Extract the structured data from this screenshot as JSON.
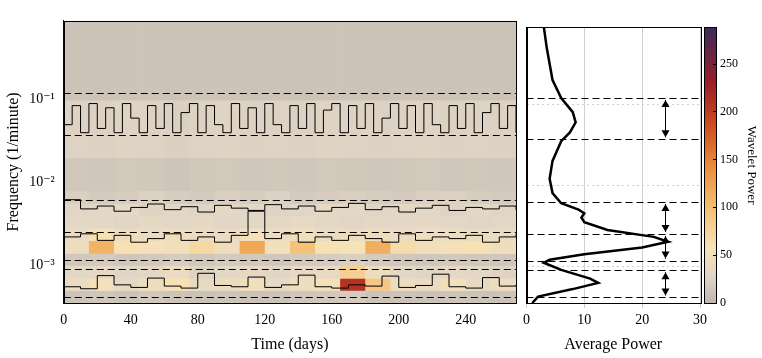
{
  "chart_data": [
    {
      "type": "heatmap",
      "xlabel": "Time (days)",
      "ylabel": "Frequency (1/minute)",
      "log": "y",
      "grid": false,
      "xlim": [
        0,
        270
      ],
      "xticks": [
        0,
        40,
        80,
        120,
        160,
        200,
        240
      ],
      "ylim": [
        0.00035,
        0.9
      ],
      "yticks": [
        {
          "value": 0.001,
          "label": "10⁻³"
        },
        {
          "value": 0.01,
          "label": "10⁻²"
        },
        {
          "value": 0.1,
          "label": "10⁻¹"
        }
      ],
      "x_edges": [
        0,
        15,
        30,
        45,
        60,
        75,
        90,
        105,
        120,
        135,
        150,
        165,
        180,
        195,
        210,
        225,
        240,
        255,
        270
      ],
      "y_edges": [
        0.00035,
        0.0005,
        0.0007,
        0.001,
        0.0014,
        0.002,
        0.0028,
        0.004,
        0.0056,
        0.008,
        0.02,
        0.1,
        0.9
      ],
      "cells": [
        [
          12,
          14,
          10,
          15,
          12,
          11,
          13,
          10,
          12,
          14,
          15,
          18,
          12,
          10,
          11,
          13,
          12,
          10
        ],
        [
          40,
          55,
          35,
          45,
          60,
          38,
          42,
          50,
          36,
          48,
          55,
          210,
          90,
          45,
          40,
          52,
          38,
          44
        ],
        [
          30,
          35,
          28,
          32,
          40,
          26,
          30,
          34,
          28,
          36,
          38,
          80,
          45,
          30,
          28,
          32,
          30,
          26
        ],
        [
          15,
          18,
          14,
          16,
          20,
          15,
          18,
          16,
          14,
          17,
          19,
          22,
          18,
          15,
          14,
          16,
          15,
          14
        ],
        [
          45,
          110,
          60,
          55,
          50,
          70,
          48,
          120,
          52,
          95,
          60,
          58,
          115,
          65,
          50,
          55,
          60,
          48
        ],
        [
          40,
          60,
          45,
          42,
          50,
          45,
          40,
          55,
          44,
          50,
          42,
          45,
          48,
          40,
          46,
          44,
          42,
          40
        ],
        [
          30,
          32,
          28,
          35,
          30,
          34,
          28,
          30,
          32,
          36,
          30,
          28,
          32,
          30,
          34,
          30,
          28,
          30
        ],
        [
          28,
          30,
          34,
          26,
          30,
          28,
          32,
          30,
          26,
          28,
          34,
          30,
          28,
          32,
          30,
          26,
          30,
          28
        ],
        [
          22,
          18,
          20,
          24,
          20,
          18,
          22,
          20,
          24,
          18,
          20,
          22,
          20,
          18,
          22,
          24,
          20,
          18
        ],
        [
          15,
          14,
          16,
          15,
          13,
          15,
          16,
          14,
          15,
          14,
          16,
          15,
          14,
          15,
          16,
          14,
          15,
          14
        ],
        [
          25,
          24,
          26,
          25,
          23,
          25,
          26,
          24,
          25,
          24,
          26,
          25,
          24,
          25,
          26,
          24,
          25,
          24
        ],
        [
          12,
          11,
          12,
          12,
          11,
          12,
          12,
          11,
          12,
          11,
          12,
          12,
          11,
          12,
          12,
          11,
          12,
          11
        ]
      ],
      "colorbar": {
        "label": "Wavelet Power",
        "range": [
          0,
          288
        ],
        "ticks": [
          0,
          50,
          100,
          150,
          200,
          250
        ]
      },
      "band_edges": [
        0.12,
        0.037,
        0.0062,
        0.0025,
        0.00117,
        0.00089,
        0.00041
      ],
      "series": [
        {
          "color": "#000000",
          "x": [
            0,
            5,
            10,
            15,
            20,
            25,
            30,
            35,
            40,
            45,
            50,
            55,
            60,
            65,
            70,
            75,
            80,
            85,
            90,
            95,
            100,
            105,
            110,
            115,
            120,
            125,
            130,
            135,
            140,
            145,
            150,
            155,
            160,
            165,
            170,
            175,
            180,
            185,
            190,
            195,
            200,
            205,
            210,
            215,
            220,
            225,
            230,
            235,
            240,
            245,
            250,
            255,
            260,
            265,
            270
          ],
          "values": [
            0.05,
            0.085,
            0.04,
            0.09,
            0.045,
            0.08,
            0.04,
            0.09,
            0.06,
            0.04,
            0.085,
            0.045,
            0.09,
            0.04,
            0.07,
            0.09,
            0.04,
            0.085,
            0.05,
            0.04,
            0.09,
            0.045,
            0.08,
            0.04,
            0.09,
            0.05,
            0.04,
            0.085,
            0.045,
            0.09,
            0.04,
            0.075,
            0.09,
            0.04,
            0.085,
            0.045,
            0.09,
            0.04,
            0.06,
            0.09,
            0.045,
            0.085,
            0.04,
            0.09,
            0.05,
            0.04,
            0.085,
            0.045,
            0.09,
            0.04,
            0.07,
            0.09,
            0.045,
            0.085,
            0.04
          ]
        },
        {
          "color": "#000000",
          "x": [
            0,
            10,
            20,
            30,
            40,
            50,
            60,
            70,
            80,
            90,
            100,
            110,
            120,
            130,
            140,
            150,
            160,
            170,
            180,
            190,
            200,
            210,
            220,
            230,
            240,
            250,
            260,
            270
          ],
          "values": [
            0.0062,
            0.0048,
            0.0052,
            0.0045,
            0.005,
            0.0055,
            0.0047,
            0.0051,
            0.0044,
            0.0053,
            0.0049,
            0.0046,
            0.0054,
            0.0048,
            0.0052,
            0.0045,
            0.005,
            0.0056,
            0.0047,
            0.0051,
            0.0044,
            0.0049,
            0.0053,
            0.0046,
            0.005,
            0.0048,
            0.0052,
            0.0047
          ]
        },
        {
          "color": "#000000",
          "x": [
            0,
            10,
            20,
            30,
            40,
            50,
            60,
            70,
            80,
            90,
            100,
            110,
            120,
            130,
            140,
            150,
            160,
            170,
            180,
            190,
            200,
            210,
            220,
            230,
            240,
            250,
            260,
            270
          ],
          "values": [
            0.0022,
            0.0024,
            0.002,
            0.0023,
            0.0019,
            0.0021,
            0.0024,
            0.002,
            0.0022,
            0.0019,
            0.0023,
            0.0045,
            0.0021,
            0.0024,
            0.0019,
            0.0022,
            0.002,
            0.0023,
            0.0021,
            0.0019,
            0.0024,
            0.002,
            0.0022,
            0.0021,
            0.0023,
            0.0019,
            0.0022,
            0.0024
          ]
        },
        {
          "color": "#000000",
          "x": [
            0,
            10,
            20,
            30,
            40,
            50,
            60,
            70,
            80,
            90,
            100,
            110,
            120,
            130,
            140,
            150,
            160,
            170,
            180,
            190,
            200,
            210,
            220,
            230,
            240,
            250,
            260,
            270
          ],
          "values": [
            0.00055,
            0.00052,
            0.00075,
            0.00058,
            0.00054,
            0.0007,
            0.00056,
            0.00053,
            0.0008,
            0.00057,
            0.00055,
            0.00072,
            0.00054,
            0.00058,
            0.00076,
            0.00055,
            0.00053,
            0.00058,
            0.00056,
            0.00074,
            0.00054,
            0.00057,
            0.00078,
            0.00055,
            0.00053,
            0.00071,
            0.00056,
            0.00058
          ]
        }
      ]
    },
    {
      "type": "line",
      "xlabel": "Average Power",
      "log": "y",
      "grid": true,
      "tick_labels": "x",
      "xlim": [
        0,
        30
      ],
      "xticks": [
        0,
        10,
        20,
        30
      ],
      "ylim": [
        0.00035,
        0.9
      ],
      "yticks": [
        {
          "value": 0.001,
          "label": "10⁻³"
        },
        {
          "value": 0.01,
          "label": "10⁻²"
        },
        {
          "value": 0.1,
          "label": "10⁻¹"
        }
      ],
      "band_edges": [
        0.12,
        0.037,
        0.0062,
        0.0025,
        0.00117,
        0.00089,
        0.00041
      ],
      "bands": [
        [
          0.037,
          0.12
        ],
        [
          0.0025,
          0.0062
        ],
        [
          0.00117,
          0.0025
        ],
        [
          0.00041,
          0.00089
        ]
      ],
      "series": [
        {
          "color": "#000000",
          "x": [
            3,
            3.5,
            4.5,
            6,
            8,
            8.5,
            7.5,
            6,
            4.5,
            4,
            4.5,
            6,
            9,
            10,
            9.5,
            10,
            14,
            22,
            24.5,
            20,
            10,
            4,
            3,
            6,
            11,
            12.4,
            8,
            2,
            1
          ],
          "values": [
            0.9,
            0.5,
            0.2,
            0.12,
            0.08,
            0.06,
            0.045,
            0.035,
            0.02,
            0.012,
            0.008,
            0.006,
            0.005,
            0.0045,
            0.004,
            0.0035,
            0.0028,
            0.0023,
            0.002,
            0.0017,
            0.0014,
            0.0012,
            0.0011,
            0.0009,
            0.0007,
            0.00062,
            0.00052,
            0.00042,
            0.00035
          ]
        }
      ]
    }
  ]
}
